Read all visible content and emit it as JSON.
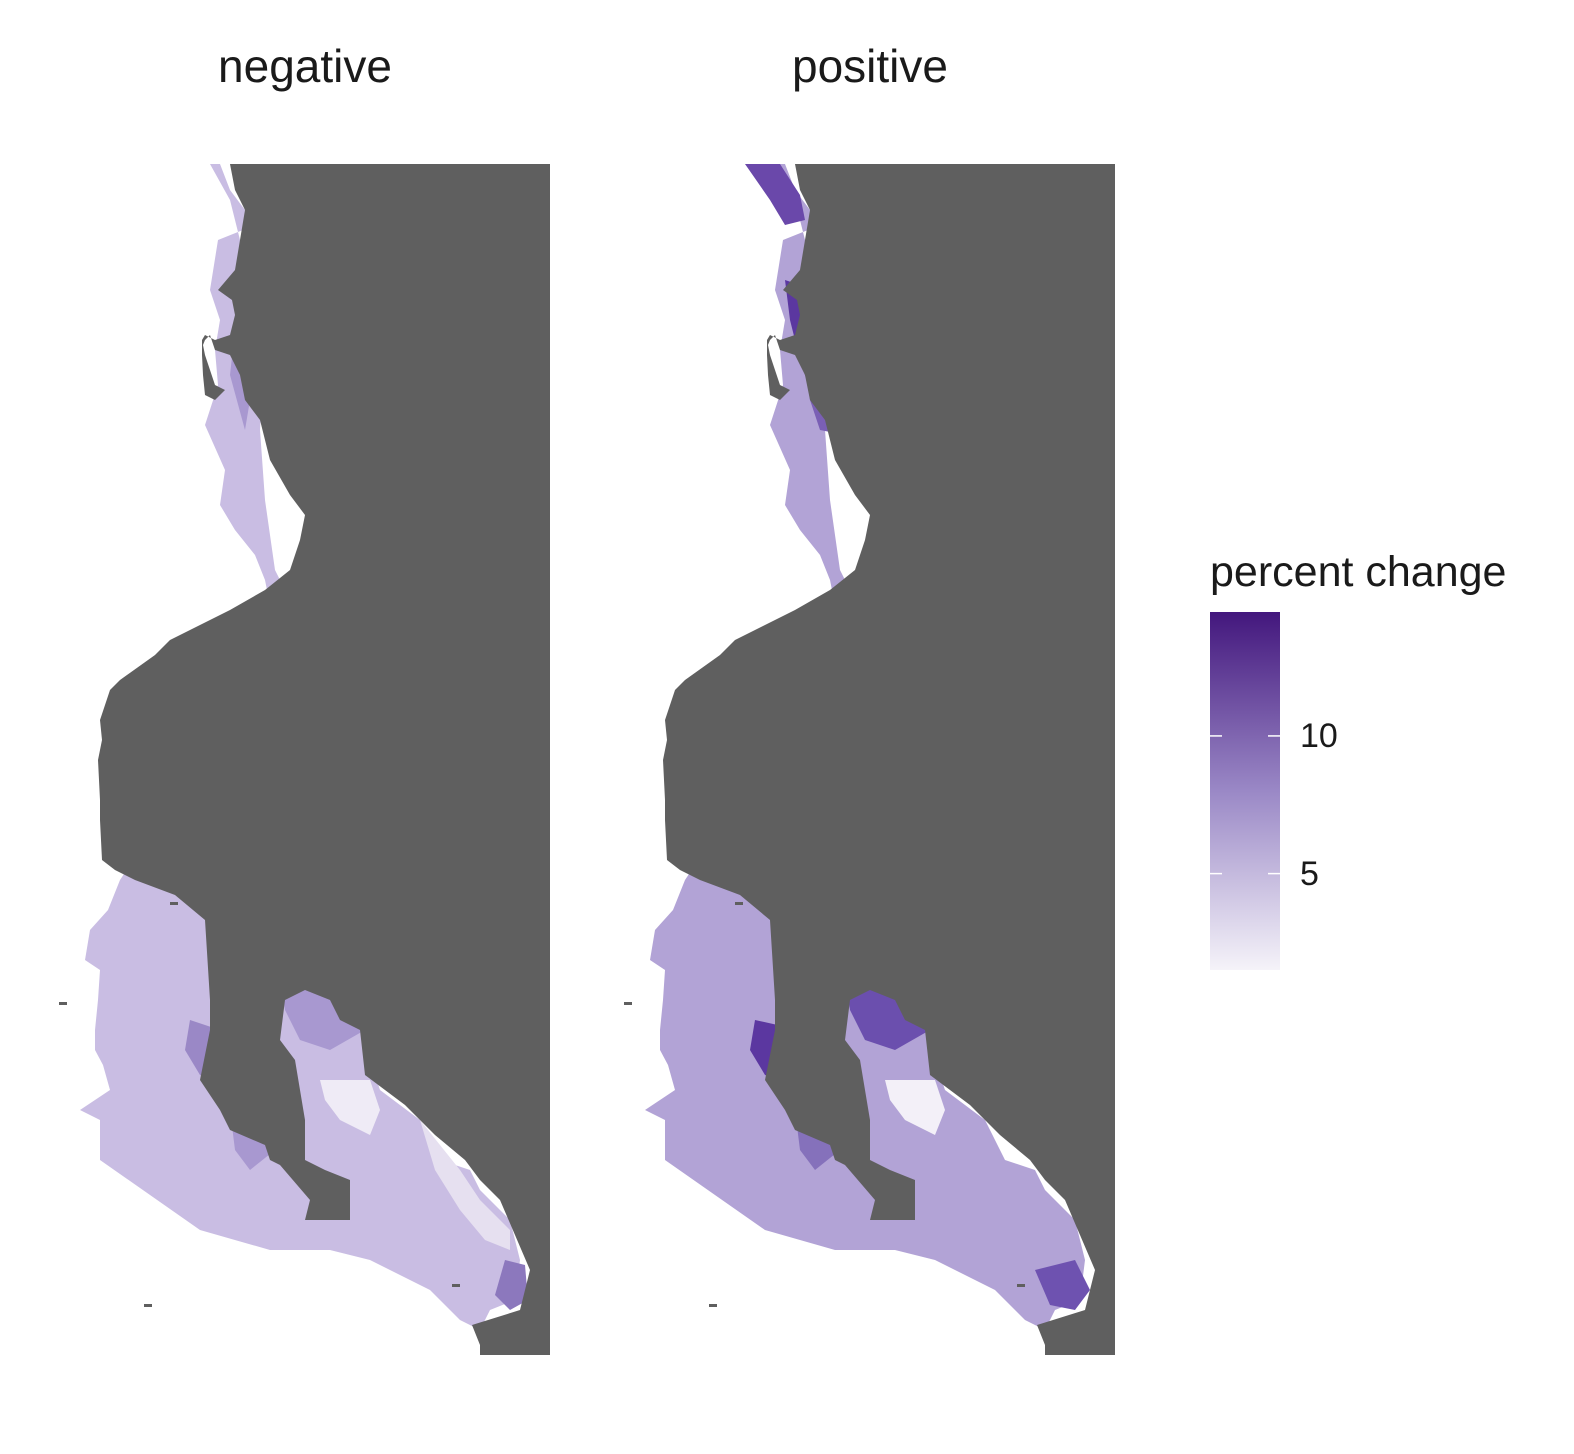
{
  "panels": [
    {
      "id": "negative",
      "title": "negative"
    },
    {
      "id": "positive",
      "title": "positive"
    }
  ],
  "legend": {
    "title": "percent change",
    "ticks": [
      {
        "value": 10,
        "label": "10"
      },
      {
        "value": 5,
        "label": "5"
      }
    ],
    "range": [
      1.5,
      14.5
    ],
    "colors": {
      "low": "#f5f3f9",
      "mid": "#9a88c6",
      "high": "#43177d"
    }
  },
  "colors": {
    "land": "#5f5f5f",
    "water": "#ffffff",
    "text": "#1a1a1a"
  }
}
